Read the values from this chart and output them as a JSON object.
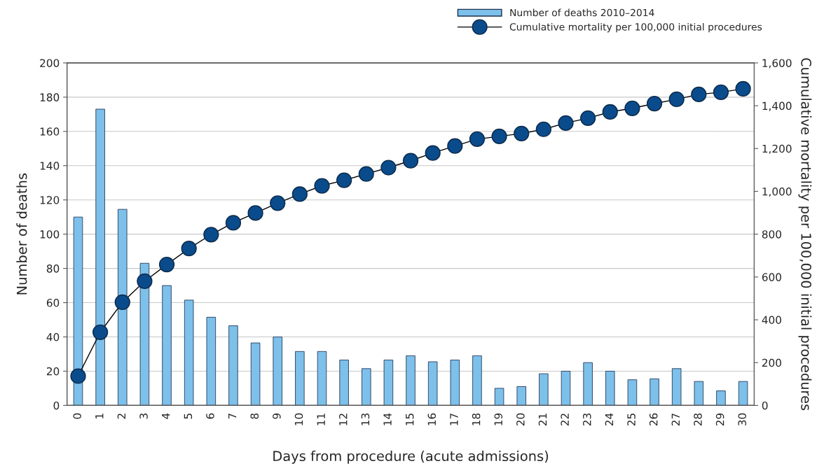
{
  "chart_data": {
    "type": "bar",
    "xlabel": "Days from procedure (acute admissions)",
    "ylabel": "Number of deaths",
    "y2label": "Cumulative mortality per 100,000 initial procedures",
    "categories": [
      "0",
      "1",
      "2",
      "3",
      "4",
      "5",
      "6",
      "7",
      "8",
      "9",
      "10",
      "11",
      "12",
      "13",
      "14",
      "15",
      "16",
      "17",
      "18",
      "19",
      "20",
      "21",
      "22",
      "23",
      "24",
      "25",
      "26",
      "27",
      "28",
      "29",
      "30"
    ],
    "series": [
      {
        "name": "Number of deaths 2010–2014",
        "color": "#7dc0ea",
        "values": [
          110,
          173,
          114.5,
          83,
          70,
          61.5,
          51.5,
          46.5,
          36.5,
          40,
          31.5,
          31.5,
          26.5,
          21.5,
          26.5,
          29,
          25.5,
          26.5,
          29,
          10,
          11,
          18.5,
          20,
          25,
          20,
          15,
          15.5,
          21.5,
          14,
          8.5,
          14
        ]
      },
      {
        "name": "Cumulative mortality per 100,000 initial procedures",
        "type": "line",
        "axis": "y2",
        "color": "#0a4b8c",
        "marker": "circle",
        "line_style": "solid",
        "values": [
          137,
          342,
          482,
          580,
          658,
          733,
          798,
          853,
          899,
          945,
          987,
          1026,
          1052,
          1081,
          1111,
          1143,
          1179,
          1212,
          1244,
          1257,
          1270,
          1290,
          1319,
          1342,
          1371,
          1388,
          1410,
          1430,
          1453,
          1463,
          1479
        ]
      }
    ],
    "ylim": [
      0,
      200
    ],
    "yticks": [
      0,
      20,
      40,
      60,
      80,
      100,
      120,
      140,
      160,
      180,
      200
    ],
    "y2lim": [
      0,
      1600
    ],
    "y2ticks": [
      0,
      200,
      400,
      600,
      800,
      {
        "value": 1000,
        "label": "1,000"
      },
      {
        "value": 1200,
        "label": "1,200"
      },
      {
        "value": 1400,
        "label": "1,400"
      },
      {
        "value": 1600,
        "label": "1,600"
      }
    ],
    "grid": "y",
    "legend": "top right"
  }
}
